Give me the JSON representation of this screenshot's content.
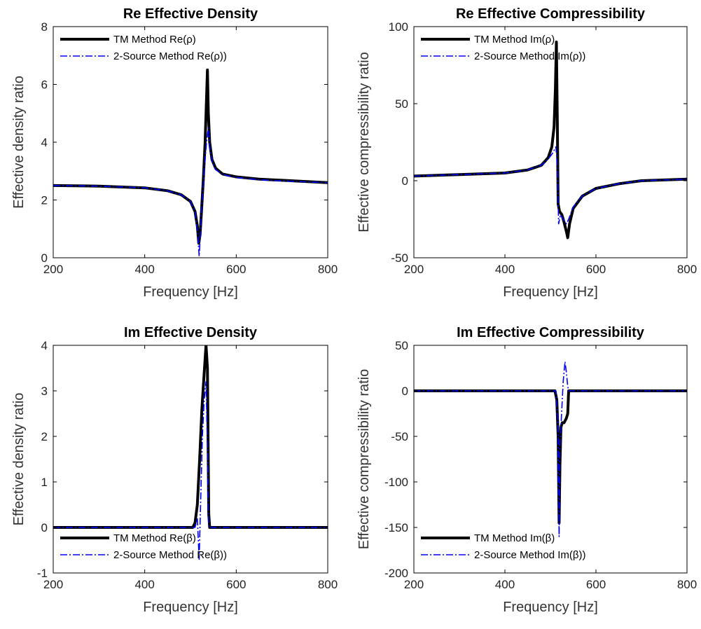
{
  "chart_data": [
    {
      "type": "line",
      "title": "Re Effective Density",
      "xlabel": "Frequency [Hz]",
      "ylabel": "Effective density ratio",
      "xlim": [
        200,
        800
      ],
      "ylim": [
        0,
        8
      ],
      "xticks": [
        200,
        400,
        600,
        800
      ],
      "yticks": [
        0,
        2,
        4,
        6,
        8
      ],
      "legend_position": "top-left",
      "series": [
        {
          "name": "TM Method Re(ρ)",
          "color": "#000000",
          "style": "solid",
          "x": [
            200,
            300,
            400,
            450,
            480,
            500,
            510,
            515,
            518,
            521,
            524,
            528,
            532,
            535,
            537,
            539,
            542,
            547,
            555,
            570,
            600,
            650,
            700,
            800
          ],
          "y": [
            2.5,
            2.48,
            2.42,
            2.32,
            2.18,
            1.95,
            1.6,
            1.1,
            0.5,
            0.8,
            1.6,
            2.7,
            4.0,
            5.5,
            6.5,
            5.0,
            4.0,
            3.4,
            3.1,
            2.9,
            2.8,
            2.72,
            2.68,
            2.6
          ]
        },
        {
          "name": "2-Source Method Re(ρ))",
          "color": "#0000ff",
          "style": "dashdot",
          "x": [
            200,
            300,
            400,
            450,
            480,
            500,
            510,
            515,
            519,
            522,
            525,
            530,
            535,
            539,
            543,
            548,
            555,
            570,
            600,
            650,
            700,
            800
          ],
          "y": [
            2.5,
            2.48,
            2.42,
            2.32,
            2.18,
            1.95,
            1.6,
            1.0,
            0.05,
            0.9,
            1.9,
            3.0,
            4.0,
            4.5,
            3.7,
            3.3,
            3.05,
            2.88,
            2.78,
            2.7,
            2.66,
            2.6
          ]
        }
      ]
    },
    {
      "type": "line",
      "title": "Re Effective Compressibility",
      "xlabel": "Frequency [Hz]",
      "ylabel": "Effective compressibility ratio",
      "xlim": [
        200,
        800
      ],
      "ylim": [
        -50,
        100
      ],
      "xticks": [
        200,
        400,
        600,
        800
      ],
      "yticks": [
        -50,
        0,
        50,
        100
      ],
      "legend_position": "top-left",
      "series": [
        {
          "name": "TM Method Im(ρ)",
          "color": "#000000",
          "style": "solid",
          "x": [
            200,
            300,
            400,
            450,
            480,
            495,
            503,
            508,
            511,
            513,
            515,
            517,
            520,
            525,
            530,
            535,
            538,
            542,
            550,
            570,
            600,
            650,
            700,
            800
          ],
          "y": [
            3,
            4,
            5,
            7,
            10,
            15,
            22,
            35,
            60,
            90,
            40,
            -15,
            -20,
            -22,
            -27,
            -33,
            -37,
            -28,
            -18,
            -10,
            -5,
            -2,
            0,
            1
          ]
        },
        {
          "name": "2-Source Method Im(ρ))",
          "color": "#0000ff",
          "style": "dashdot",
          "x": [
            200,
            300,
            400,
            450,
            480,
            495,
            505,
            512,
            515,
            518,
            522,
            528,
            535,
            540,
            550,
            570,
            600,
            650,
            700,
            800
          ],
          "y": [
            3,
            4,
            5,
            7,
            10,
            14,
            18,
            22,
            10,
            -28,
            -22,
            -25,
            -28,
            -25,
            -17,
            -10,
            -5,
            -2,
            0,
            1
          ]
        }
      ]
    },
    {
      "type": "line",
      "title": "Im Effective Density",
      "xlabel": "Frequency [Hz]",
      "ylabel": "Effective density ratio",
      "xlim": [
        200,
        800
      ],
      "ylim": [
        -1,
        4
      ],
      "xticks": [
        200,
        400,
        600,
        800
      ],
      "yticks": [
        -1,
        0,
        1,
        2,
        3,
        4
      ],
      "legend_position": "bottom-left",
      "series": [
        {
          "name": "TM Method Re(β)",
          "color": "#000000",
          "style": "solid",
          "x": [
            200,
            505,
            510,
            515,
            520,
            525,
            530,
            534,
            537,
            540,
            542,
            800
          ],
          "y": [
            0,
            0,
            0.1,
            0.5,
            1.5,
            2.6,
            3.4,
            4.0,
            3.5,
            0.3,
            0,
            0
          ]
        },
        {
          "name": "2-Source Method Re(β))",
          "color": "#0000ff",
          "style": "dashdot",
          "x": [
            200,
            510,
            515,
            519,
            522,
            526,
            530,
            534,
            537,
            540,
            800
          ],
          "y": [
            0,
            0,
            0.2,
            -0.7,
            0.5,
            2.0,
            2.8,
            3.2,
            1.8,
            0,
            0
          ]
        }
      ]
    },
    {
      "type": "line",
      "title": "Im Effective Compressibility",
      "xlabel": "Frequency [Hz]",
      "ylabel": "Effective compressibility ratio",
      "xlim": [
        200,
        800
      ],
      "ylim": [
        -200,
        50
      ],
      "xticks": [
        200,
        400,
        600,
        800
      ],
      "yticks": [
        -200,
        -150,
        -100,
        -50,
        0,
        50
      ],
      "legend_position": "bottom-left",
      "series": [
        {
          "name": "TM Method Im(β)",
          "color": "#000000",
          "style": "solid",
          "x": [
            200,
            510,
            514,
            517,
            519,
            521,
            523,
            526,
            530,
            535,
            538,
            540,
            800
          ],
          "y": [
            0,
            0,
            -10,
            -50,
            -145,
            -80,
            -40,
            -35,
            -35,
            -30,
            -25,
            0,
            0
          ]
        },
        {
          "name": "2-Source Method Im(β))",
          "color": "#0000ff",
          "style": "dashdot",
          "x": [
            200,
            512,
            516,
            519,
            521,
            524,
            528,
            532,
            535,
            538,
            540,
            800
          ],
          "y": [
            0,
            0,
            -30,
            -160,
            -60,
            -30,
            10,
            32,
            20,
            5,
            0,
            0
          ]
        }
      ]
    }
  ]
}
